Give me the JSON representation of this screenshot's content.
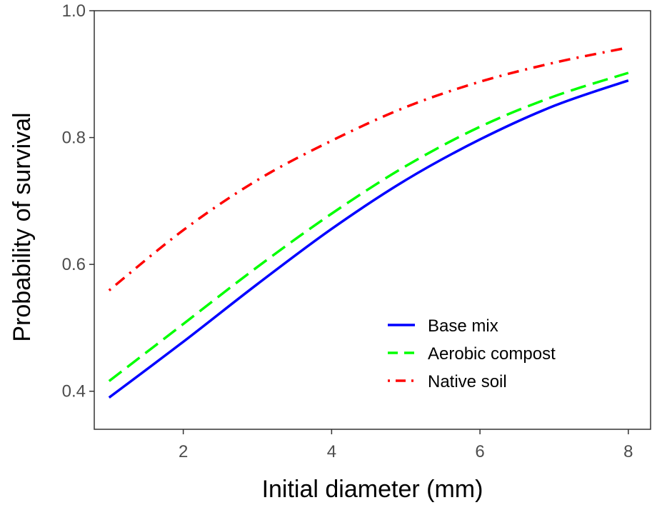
{
  "chart_data": {
    "type": "line",
    "title": "",
    "xlabel": "Initial diameter (mm)",
    "ylabel": "Probability of survival",
    "xlim": [
      0.8,
      8.3
    ],
    "ylim": [
      0.34,
      1.0
    ],
    "xticks": [
      2,
      4,
      6,
      8
    ],
    "xtick_labels": [
      "2",
      "4",
      "6",
      "8"
    ],
    "yticks": [
      0.4,
      0.6,
      0.8,
      1.0
    ],
    "ytick_labels": [
      "0.4",
      "0.6",
      "0.8",
      "1.0"
    ],
    "grid": false,
    "legend_position": "bottom-right",
    "x": [
      1,
      2,
      3,
      4,
      5,
      6,
      7,
      8
    ],
    "series": [
      {
        "name": "Base mix",
        "color": "#0000ff",
        "dash": "solid",
        "values": [
          0.39,
          0.478,
          0.569,
          0.656,
          0.733,
          0.797,
          0.85,
          0.89
        ]
      },
      {
        "name": "Aerobic compost",
        "color": "#00ff00",
        "dash": "dashed",
        "values": [
          0.416,
          0.506,
          0.596,
          0.68,
          0.755,
          0.817,
          0.865,
          0.902
        ]
      },
      {
        "name": "Native soil",
        "color": "#ff0000",
        "dash": "dotdash",
        "values": [
          0.559,
          0.654,
          0.733,
          0.795,
          0.848,
          0.888,
          0.918,
          0.942
        ]
      }
    ]
  }
}
